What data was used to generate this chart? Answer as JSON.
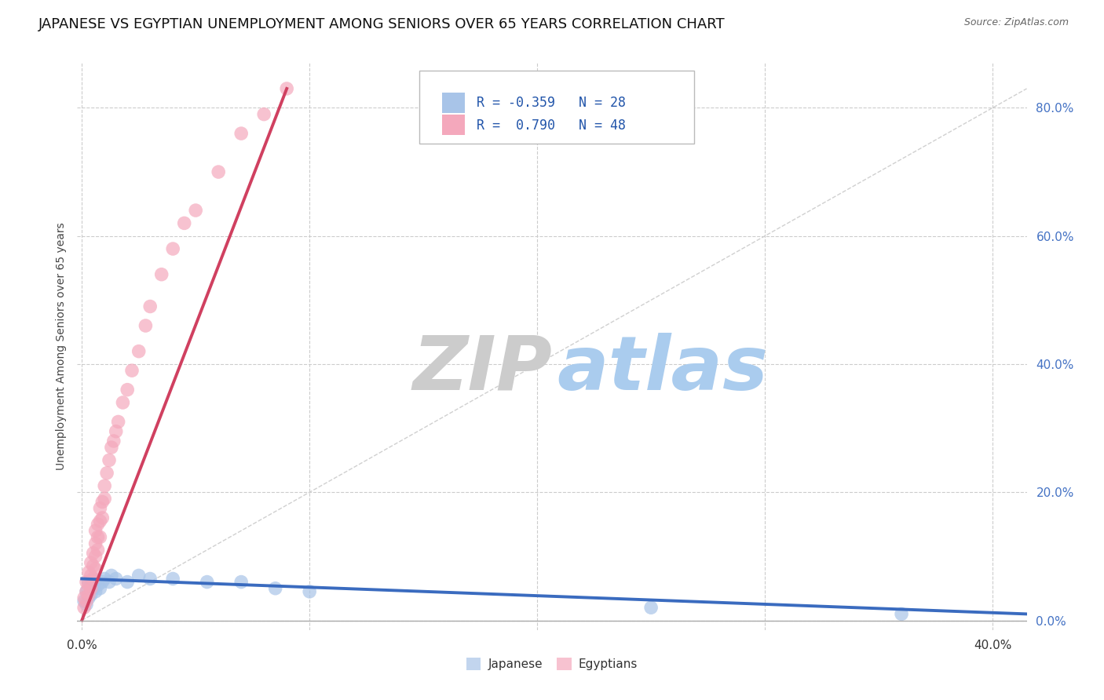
{
  "title": "JAPANESE VS EGYPTIAN UNEMPLOYMENT AMONG SENIORS OVER 65 YEARS CORRELATION CHART",
  "source": "Source: ZipAtlas.com",
  "ylabel": "Unemployment Among Seniors over 65 years",
  "xlim": [
    -0.002,
    0.415
  ],
  "ylim": [
    -0.015,
    0.87
  ],
  "xtick_vals": [
    0.0,
    0.1,
    0.2,
    0.3,
    0.4
  ],
  "xticklabels": [
    "0.0%",
    "",
    "",
    "",
    "40.0%"
  ],
  "ytick_right_vals": [
    0.0,
    0.2,
    0.4,
    0.6,
    0.8
  ],
  "ytick_right_labels": [
    "0.0%",
    "20.0%",
    "40.0%",
    "60.0%",
    "80.0%"
  ],
  "japanese_R": -0.359,
  "japanese_N": 28,
  "egyptian_R": 0.79,
  "egyptian_N": 48,
  "japanese_color": "#a8c4e8",
  "egyptian_color": "#f4a8bc",
  "japanese_line_color": "#3a6bbf",
  "egyptian_line_color": "#d04060",
  "ref_line_color": "#d0d0d0",
  "zip_color": "#cccccc",
  "atlas_color": "#aaccee",
  "background_color": "#ffffff",
  "grid_color": "#cccccc",
  "title_fontsize": 13,
  "marker_size": 160,
  "japanese_x": [
    0.001,
    0.002,
    0.002,
    0.003,
    0.003,
    0.004,
    0.004,
    0.005,
    0.005,
    0.006,
    0.006,
    0.007,
    0.008,
    0.009,
    0.01,
    0.012,
    0.013,
    0.015,
    0.02,
    0.025,
    0.03,
    0.04,
    0.055,
    0.07,
    0.085,
    0.1,
    0.25,
    0.36
  ],
  "japanese_y": [
    0.03,
    0.025,
    0.045,
    0.035,
    0.06,
    0.04,
    0.055,
    0.05,
    0.065,
    0.045,
    0.06,
    0.055,
    0.05,
    0.06,
    0.065,
    0.06,
    0.07,
    0.065,
    0.06,
    0.07,
    0.065,
    0.065,
    0.06,
    0.06,
    0.05,
    0.045,
    0.02,
    0.01
  ],
  "egyptian_x": [
    0.001,
    0.001,
    0.002,
    0.002,
    0.002,
    0.003,
    0.003,
    0.003,
    0.004,
    0.004,
    0.004,
    0.005,
    0.005,
    0.005,
    0.006,
    0.006,
    0.006,
    0.006,
    0.007,
    0.007,
    0.007,
    0.008,
    0.008,
    0.008,
    0.009,
    0.009,
    0.01,
    0.01,
    0.011,
    0.012,
    0.013,
    0.014,
    0.015,
    0.016,
    0.018,
    0.02,
    0.022,
    0.025,
    0.028,
    0.03,
    0.035,
    0.04,
    0.045,
    0.05,
    0.06,
    0.07,
    0.08,
    0.09
  ],
  "egyptian_y": [
    0.02,
    0.035,
    0.03,
    0.045,
    0.06,
    0.04,
    0.055,
    0.075,
    0.05,
    0.07,
    0.09,
    0.065,
    0.085,
    0.105,
    0.08,
    0.1,
    0.12,
    0.14,
    0.11,
    0.13,
    0.15,
    0.13,
    0.155,
    0.175,
    0.16,
    0.185,
    0.19,
    0.21,
    0.23,
    0.25,
    0.27,
    0.28,
    0.295,
    0.31,
    0.34,
    0.36,
    0.39,
    0.42,
    0.46,
    0.49,
    0.54,
    0.58,
    0.62,
    0.64,
    0.7,
    0.76,
    0.79,
    0.83
  ],
  "eg_line_x0": 0.0,
  "eg_line_y0": 0.0,
  "eg_line_x1": 0.09,
  "eg_line_y1": 0.83,
  "jp_line_x0": 0.0,
  "jp_line_y0": 0.065,
  "jp_line_x1": 0.415,
  "jp_line_y1": 0.01
}
